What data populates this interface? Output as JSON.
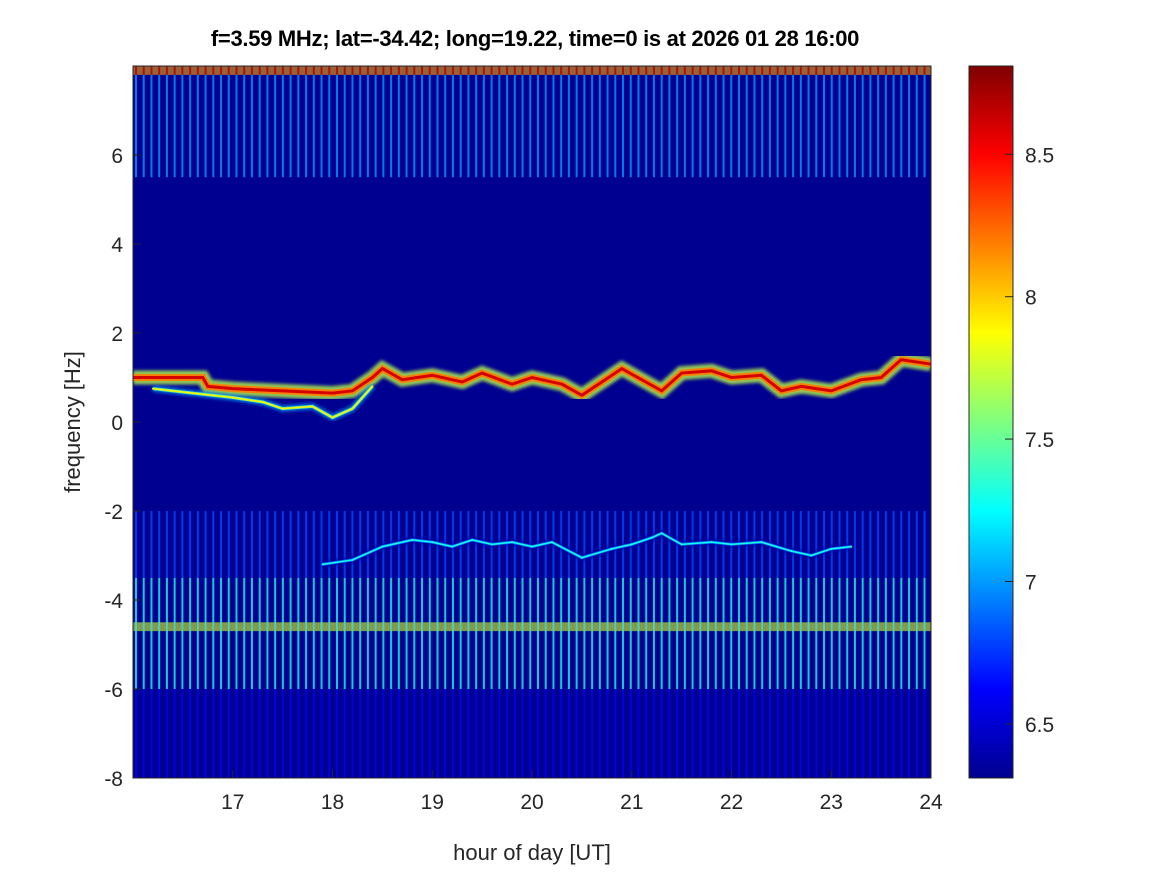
{
  "chart_data": {
    "type": "heatmap",
    "title": "f=3.59 MHz;  lat=-34.42; long=19.22, time=0 is at 2026 01 28 16:00",
    "xlabel": "hour of day [UT]",
    "ylabel": "frequency [Hz]",
    "xlim": [
      16,
      24
    ],
    "ylim": [
      -8,
      8
    ],
    "xticks": [
      17,
      18,
      19,
      20,
      21,
      22,
      23,
      24
    ],
    "yticks": [
      -8,
      -6,
      -4,
      -2,
      0,
      2,
      4,
      6
    ],
    "colormap": "jet",
    "clim": [
      6.31,
      8.81
    ],
    "colorbar_ticks": [
      6.5,
      7,
      7.5,
      8,
      8.5
    ],
    "background_level": 6.35,
    "traces": [
      {
        "label_id": "main-doppler-trace",
        "level": 8.6,
        "x": [
          16.0,
          16.7,
          16.75,
          17.0,
          17.5,
          18.0,
          18.2,
          18.4,
          18.5,
          18.7,
          19.0,
          19.3,
          19.5,
          19.8,
          20.0,
          20.3,
          20.5,
          20.7,
          20.9,
          21.1,
          21.3,
          21.5,
          21.8,
          22.0,
          22.3,
          22.5,
          22.7,
          23.0,
          23.3,
          23.5,
          23.7,
          24.0
        ],
        "y": [
          1.0,
          1.0,
          0.8,
          0.75,
          0.7,
          0.65,
          0.7,
          1.0,
          1.2,
          0.95,
          1.05,
          0.9,
          1.1,
          0.85,
          1.0,
          0.85,
          0.6,
          0.9,
          1.2,
          0.95,
          0.7,
          1.1,
          1.15,
          1.0,
          1.05,
          0.7,
          0.8,
          0.7,
          0.95,
          1.0,
          1.4,
          1.3
        ]
      },
      {
        "label_id": "secondary-trace",
        "level": 7.9,
        "x": [
          16.2,
          16.6,
          17.0,
          17.3,
          17.5,
          17.8,
          18.0,
          18.2,
          18.4
        ],
        "y": [
          0.75,
          0.65,
          0.55,
          0.45,
          0.3,
          0.35,
          0.1,
          0.3,
          0.8
        ]
      },
      {
        "label_id": "negative-trace",
        "level": 7.3,
        "x": [
          17.9,
          18.2,
          18.5,
          18.8,
          19.0,
          19.2,
          19.4,
          19.6,
          19.8,
          20.0,
          20.2,
          20.5,
          20.8,
          21.0,
          21.2,
          21.3,
          21.5,
          21.8,
          22.0,
          22.3,
          22.6,
          22.8,
          23.0,
          23.2
        ],
        "y": [
          -3.2,
          -3.1,
          -2.8,
          -2.65,
          -2.7,
          -2.8,
          -2.65,
          -2.75,
          -2.7,
          -2.8,
          -2.7,
          -3.05,
          -2.85,
          -2.75,
          -2.6,
          -2.5,
          -2.75,
          -2.7,
          -2.75,
          -2.7,
          -2.9,
          -3.0,
          -2.85,
          -2.8
        ]
      }
    ],
    "bands": [
      {
        "label_id": "top-interference-band",
        "y": [
          7.8,
          8.0
        ],
        "level": 8.7
      },
      {
        "label_id": "upper-stripes",
        "y": [
          5.5,
          7.8
        ],
        "level": 7.0
      },
      {
        "label_id": "lower-interference-band",
        "y": [
          -4.7,
          -4.5
        ],
        "level": 8.4
      },
      {
        "label_id": "lower-stripes",
        "y": [
          -6.0,
          -3.5
        ],
        "level": 7.3
      },
      {
        "label_id": "mid-stripes",
        "y": [
          -3.5,
          -2.0
        ],
        "level": 6.8
      },
      {
        "label_id": "bottom-stripes",
        "y": [
          -8.0,
          -6.0
        ],
        "level": 6.6
      }
    ]
  }
}
